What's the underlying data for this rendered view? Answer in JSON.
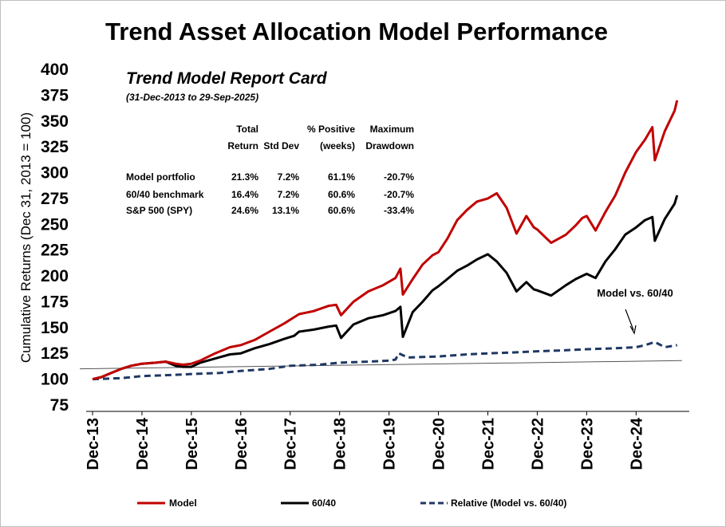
{
  "chart_data": {
    "type": "line",
    "title": "Trend Asset Allocation Model Performance",
    "ylabel": "Cumulative Returns (Dec 31, 2013 = 100)",
    "xlabel": "",
    "ylim": [
      75,
      400
    ],
    "yticks": [
      75,
      100,
      125,
      150,
      175,
      200,
      225,
      250,
      275,
      300,
      325,
      350,
      375,
      400
    ],
    "xlim": [
      2013.92,
      2025.9
    ],
    "categories": [
      "Dec-13",
      "Dec-14",
      "Dec-15",
      "Dec-16",
      "Dec-17",
      "Dec-18",
      "Dec-19",
      "Dec-20",
      "Dec-21",
      "Dec-22",
      "Dec-23",
      "Dec-24"
    ],
    "category_x": [
      2013.92,
      2014.92,
      2015.92,
      2016.92,
      2017.92,
      2018.92,
      2019.92,
      2020.92,
      2021.92,
      2022.92,
      2023.92,
      2024.92
    ],
    "series": [
      {
        "name": "Model",
        "color": "#c00000",
        "style": "solid",
        "x": [
          2013.92,
          2014.1,
          2014.3,
          2014.5,
          2014.7,
          2014.92,
          2015.2,
          2015.4,
          2015.6,
          2015.75,
          2015.92,
          2016.1,
          2016.4,
          2016.7,
          2016.92,
          2017.2,
          2017.5,
          2017.8,
          2018.0,
          2018.1,
          2018.4,
          2018.7,
          2018.85,
          2018.95,
          2019.2,
          2019.5,
          2019.8,
          2020.05,
          2020.15,
          2020.2,
          2020.4,
          2020.6,
          2020.8,
          2020.92,
          2021.1,
          2021.3,
          2021.5,
          2021.7,
          2021.92,
          2022.1,
          2022.3,
          2022.5,
          2022.7,
          2022.85,
          2022.92,
          2023.2,
          2023.5,
          2023.7,
          2023.83,
          2023.92,
          2024.1,
          2024.3,
          2024.5,
          2024.7,
          2024.92,
          2025.1,
          2025.25,
          2025.3,
          2025.5,
          2025.7,
          2025.75
        ],
        "values": [
          100,
          102,
          106,
          110,
          113,
          115,
          116,
          117,
          115,
          114,
          115,
          118,
          125,
          131,
          133,
          138,
          146,
          154,
          160,
          163,
          166,
          171,
          172,
          162,
          175,
          185,
          191,
          198,
          207,
          182,
          197,
          211,
          220,
          223,
          236,
          254,
          264,
          272,
          275,
          280,
          266,
          241,
          258,
          247,
          245,
          232,
          240,
          249,
          256,
          258,
          244,
          262,
          278,
          300,
          320,
          332,
          344,
          312,
          340,
          360,
          370
        ]
      },
      {
        "name": "60/40",
        "color": "#000000",
        "style": "solid",
        "x": [
          2013.92,
          2014.1,
          2014.3,
          2014.5,
          2014.7,
          2014.92,
          2015.2,
          2015.4,
          2015.6,
          2015.75,
          2015.92,
          2016.1,
          2016.4,
          2016.7,
          2016.92,
          2017.2,
          2017.5,
          2017.8,
          2018.0,
          2018.1,
          2018.4,
          2018.7,
          2018.85,
          2018.95,
          2019.2,
          2019.5,
          2019.8,
          2020.05,
          2020.15,
          2020.2,
          2020.4,
          2020.6,
          2020.8,
          2020.92,
          2021.1,
          2021.3,
          2021.5,
          2021.7,
          2021.92,
          2022.1,
          2022.3,
          2022.5,
          2022.7,
          2022.85,
          2022.92,
          2023.2,
          2023.5,
          2023.7,
          2023.83,
          2023.92,
          2024.1,
          2024.3,
          2024.5,
          2024.7,
          2024.92,
          2025.1,
          2025.25,
          2025.3,
          2025.5,
          2025.7,
          2025.75
        ],
        "values": [
          100,
          102,
          106,
          110,
          113,
          115,
          116,
          117,
          113,
          112,
          112,
          116,
          120,
          124,
          125,
          130,
          134,
          139,
          142,
          146,
          148,
          151,
          152,
          140,
          153,
          159,
          162,
          166,
          170,
          141,
          165,
          175,
          186,
          190,
          197,
          205,
          210,
          216,
          221,
          214,
          203,
          185,
          194,
          187,
          186,
          181,
          191,
          197,
          200,
          202,
          198,
          214,
          226,
          240,
          247,
          254,
          257,
          234,
          255,
          270,
          278
        ]
      },
      {
        "name": "Relative (Model vs. 60/40)",
        "color": "#1f3864",
        "style": "dashed",
        "x": [
          2013.92,
          2014.5,
          2014.92,
          2015.5,
          2015.92,
          2016.5,
          2016.92,
          2017.5,
          2017.92,
          2018.5,
          2018.92,
          2019.5,
          2019.92,
          2020.05,
          2020.12,
          2020.3,
          2020.92,
          2021.5,
          2021.92,
          2022.5,
          2022.92,
          2023.5,
          2023.92,
          2024.5,
          2024.92,
          2025.1,
          2025.3,
          2025.5,
          2025.75
        ],
        "values": [
          100,
          101,
          103,
          104,
          105,
          106,
          108,
          110,
          113,
          114,
          116,
          117,
          118,
          119,
          125,
          121,
          122,
          124,
          125,
          126,
          127,
          128,
          129,
          130,
          131,
          133,
          136,
          131,
          133
        ]
      }
    ],
    "trendline": {
      "name": "trendline",
      "color": "#000000",
      "x": [
        2013.92,
        2025.75
      ],
      "values": [
        110,
        118
      ]
    },
    "legend": [
      {
        "label": "Model",
        "color": "#c00000",
        "style": "solid"
      },
      {
        "label": "60/40",
        "color": "#000000",
        "style": "solid"
      },
      {
        "label": "Relative (Model vs. 60/40)",
        "color": "#1f3864",
        "style": "dashed"
      }
    ],
    "legend_position": "bottom",
    "annotation": "Model vs. 60/40"
  },
  "report_card": {
    "title": "Trend Model Report Card",
    "subtitle": "(31-Dec-2013 to 29-Sep-2025)",
    "headers_line1": [
      "Total",
      "",
      "% Positive",
      "Maximum"
    ],
    "headers_line2": [
      "Return",
      "Std Dev",
      "(weeks)",
      "Drawdown"
    ],
    "rows": [
      {
        "label": "Model portfolio",
        "values": [
          "21.3%",
          "7.2%",
          "61.1%",
          "-20.7%"
        ]
      },
      {
        "label": "60/40 benchmark",
        "values": [
          "16.4%",
          "7.2%",
          "60.6%",
          "-20.7%"
        ]
      },
      {
        "label": "S&P 500 (SPY)",
        "values": [
          "24.6%",
          "13.1%",
          "60.6%",
          "-33.4%"
        ]
      }
    ]
  }
}
